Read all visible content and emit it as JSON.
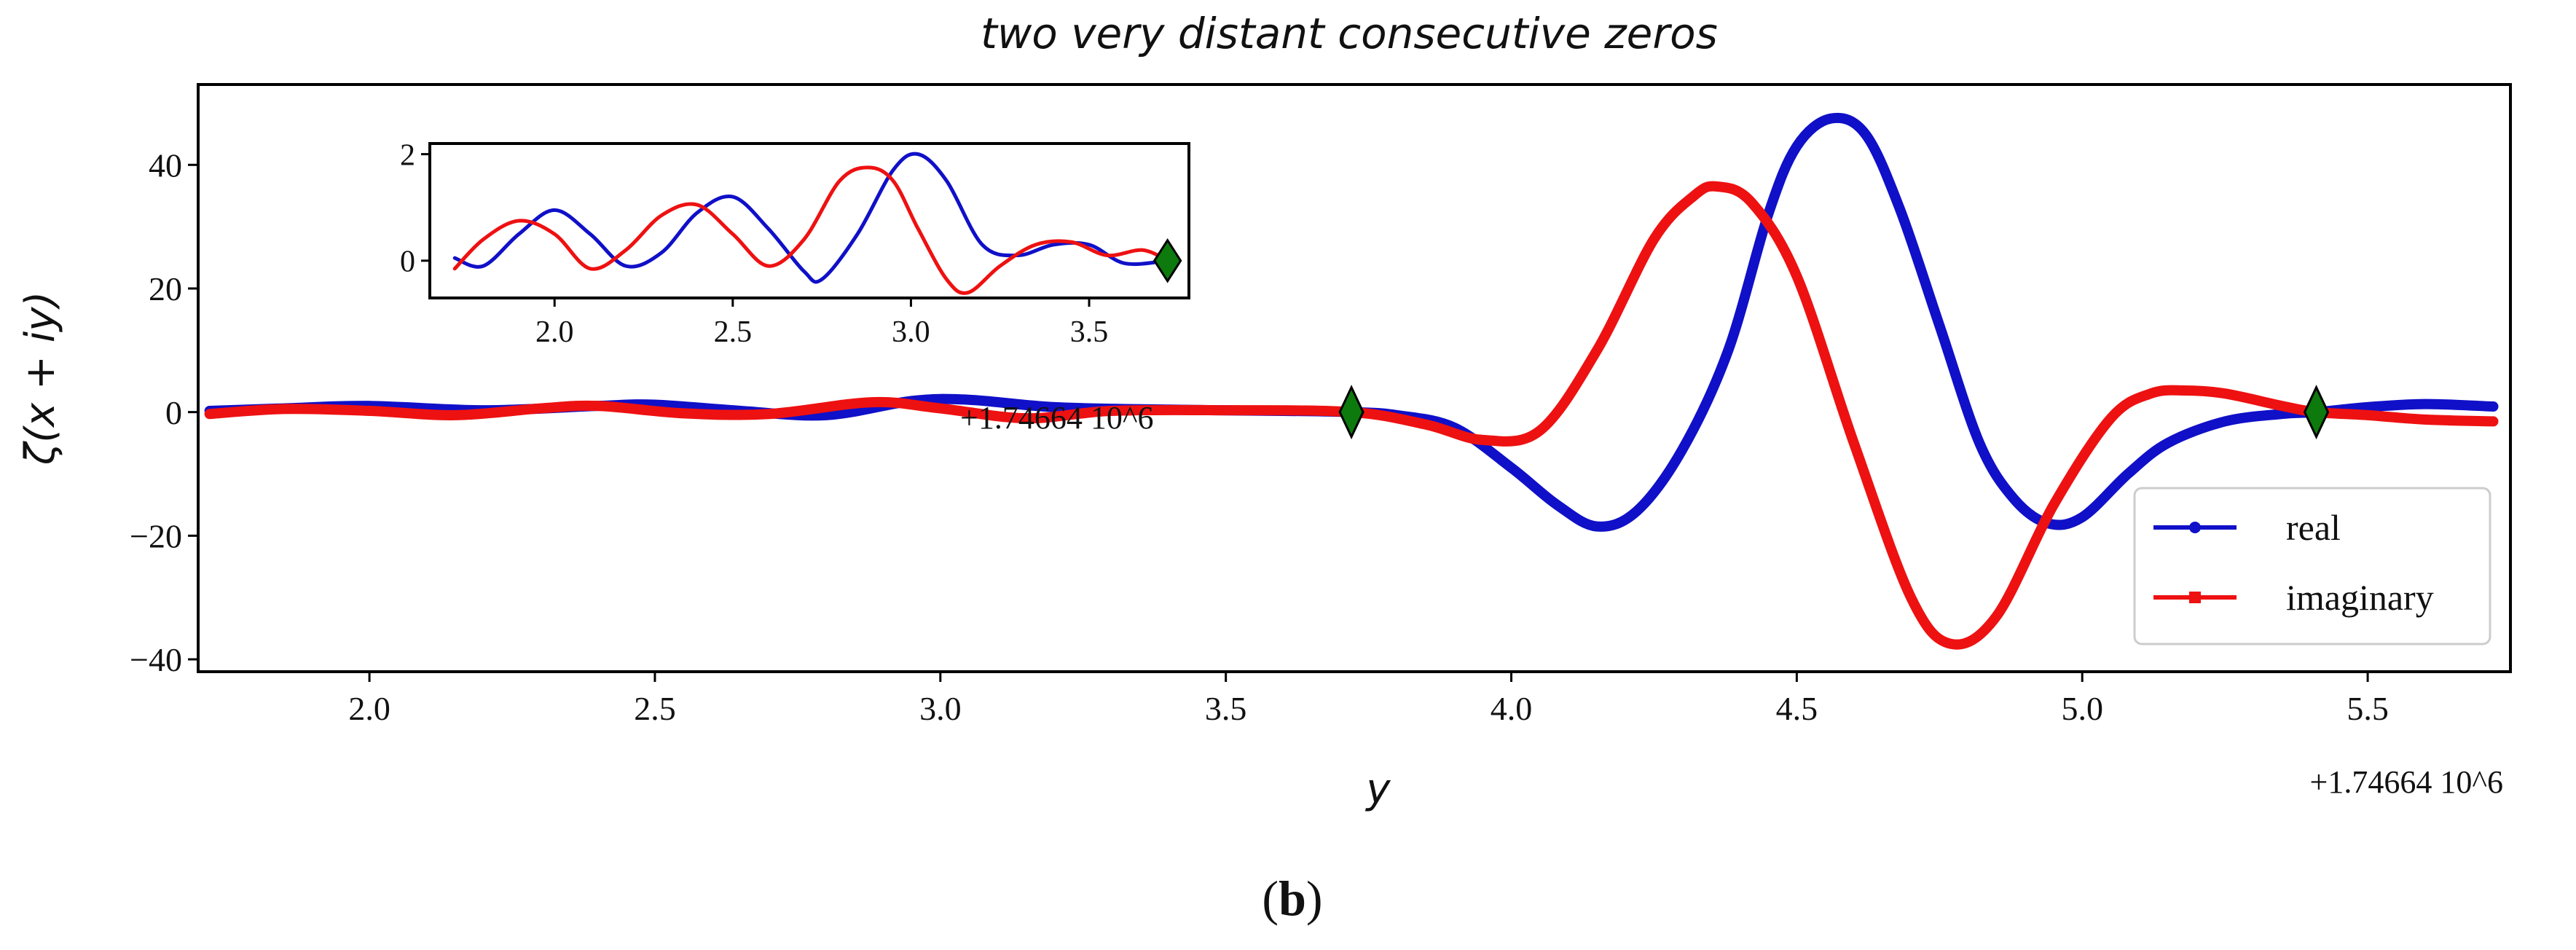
{
  "caption": {
    "open": "(",
    "letter": "b",
    "close": ")"
  },
  "chart_data": [
    {
      "type": "line",
      "title": "two very distant consecutive zeros",
      "xlabel": "y",
      "ylabel": "ζ(x + iy)",
      "x_offset_label": "+1.74664 10^6",
      "xlim": [
        1.7,
        5.75
      ],
      "ylim": [
        -42,
        53
      ],
      "xticks": [
        2.0,
        2.5,
        3.0,
        3.5,
        4.0,
        4.5,
        5.0,
        5.5
      ],
      "yticks": [
        -40,
        -20,
        0,
        20,
        40
      ],
      "legend": {
        "position": "lower-right",
        "entries": [
          "real",
          "imaginary"
        ]
      },
      "series": [
        {
          "name": "real",
          "color": "#1010c8",
          "x": [
            1.72,
            1.85,
            2.0,
            2.2,
            2.4,
            2.5,
            2.65,
            2.8,
            2.95,
            3.05,
            3.2,
            3.4,
            3.6,
            3.72,
            3.8,
            3.9,
            4.0,
            4.08,
            4.15,
            4.22,
            4.3,
            4.38,
            4.45,
            4.5,
            4.56,
            4.62,
            4.68,
            4.75,
            4.82,
            4.88,
            4.94,
            5.0,
            5.08,
            5.15,
            5.25,
            5.35,
            5.41,
            5.5,
            5.6,
            5.72
          ],
          "y": [
            0.2,
            0.6,
            1.0,
            0.3,
            1.0,
            1.2,
            0.2,
            -0.5,
            1.8,
            2.0,
            0.8,
            0.4,
            0.2,
            0.0,
            -0.5,
            -2.5,
            -9.0,
            -15.0,
            -18.5,
            -16.0,
            -6.0,
            10.0,
            32.0,
            43.0,
            47.5,
            45.0,
            33.0,
            14.0,
            -5.0,
            -14.0,
            -18.0,
            -17.0,
            -10.0,
            -5.0,
            -1.5,
            -0.3,
            0.0,
            0.8,
            1.3,
            0.9
          ]
        },
        {
          "name": "imaginary",
          "color": "#ee1111",
          "x": [
            1.72,
            1.85,
            2.0,
            2.15,
            2.3,
            2.4,
            2.55,
            2.7,
            2.88,
            3.0,
            3.15,
            3.3,
            3.5,
            3.72,
            3.85,
            3.95,
            4.05,
            4.15,
            4.25,
            4.32,
            4.36,
            4.42,
            4.5,
            4.6,
            4.7,
            4.77,
            4.85,
            4.95,
            5.05,
            5.12,
            5.18,
            5.25,
            5.35,
            5.41,
            5.5,
            5.6,
            5.72
          ],
          "y": [
            -0.3,
            0.5,
            0.2,
            -0.5,
            0.6,
            1.0,
            -0.2,
            -0.3,
            1.6,
            0.6,
            -1.0,
            0.2,
            0.3,
            0.0,
            -2.0,
            -4.5,
            -3.0,
            10.0,
            28.0,
            35.0,
            36.5,
            34.0,
            22.0,
            -5.0,
            -30.0,
            -37.5,
            -33.0,
            -15.0,
            -1.0,
            3.0,
            3.5,
            3.0,
            1.0,
            0.0,
            -0.5,
            -1.2,
            -1.5
          ]
        }
      ],
      "markers": [
        {
          "label": "zero",
          "x": 3.72,
          "y": 0
        },
        {
          "label": "zero",
          "x": 5.41,
          "y": 0
        }
      ]
    },
    {
      "type": "line",
      "title": "inset",
      "x_offset_label": "+1.74664 10^6",
      "xlim": [
        1.65,
        3.78
      ],
      "ylim": [
        -0.7,
        2.2
      ],
      "xticks": [
        2.0,
        2.5,
        3.0,
        3.5
      ],
      "yticks": [
        0,
        2
      ],
      "series": [
        {
          "name": "real",
          "color": "#1010c8",
          "x": [
            1.72,
            1.8,
            1.9,
            2.0,
            2.1,
            2.2,
            2.3,
            2.4,
            2.5,
            2.6,
            2.7,
            2.75,
            2.85,
            2.95,
            3.02,
            3.1,
            3.2,
            3.3,
            3.4,
            3.5,
            3.6,
            3.72
          ],
          "y": [
            0.05,
            -0.1,
            0.5,
            0.95,
            0.5,
            -0.1,
            0.15,
            0.9,
            1.2,
            0.6,
            -0.2,
            -0.35,
            0.5,
            1.7,
            2.0,
            1.5,
            0.3,
            0.1,
            0.3,
            0.3,
            -0.05,
            0.0
          ]
        },
        {
          "name": "imaginary",
          "color": "#ee1111",
          "x": [
            1.72,
            1.8,
            1.9,
            2.0,
            2.1,
            2.2,
            2.3,
            2.4,
            2.5,
            2.6,
            2.7,
            2.8,
            2.88,
            2.95,
            3.02,
            3.1,
            3.16,
            3.25,
            3.35,
            3.45,
            3.55,
            3.65,
            3.72
          ],
          "y": [
            -0.15,
            0.4,
            0.75,
            0.5,
            -0.15,
            0.2,
            0.85,
            1.05,
            0.5,
            -0.1,
            0.4,
            1.5,
            1.75,
            1.5,
            0.6,
            -0.35,
            -0.6,
            -0.1,
            0.3,
            0.35,
            0.1,
            0.2,
            0.0
          ]
        }
      ],
      "markers": [
        {
          "label": "zero",
          "x": 3.72,
          "y": 0
        }
      ]
    }
  ]
}
